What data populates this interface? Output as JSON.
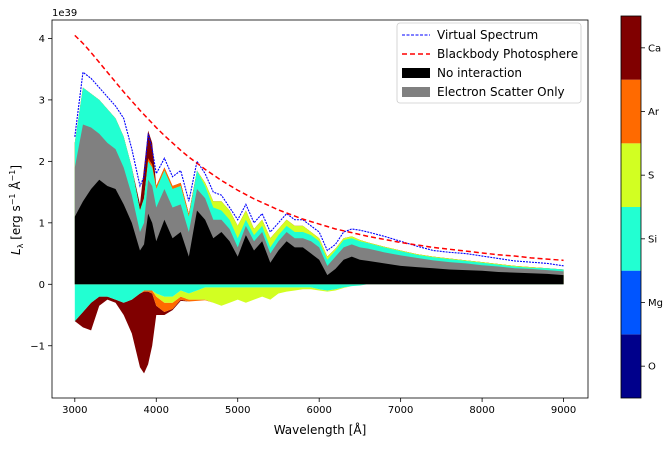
{
  "chart_data": {
    "type": "area",
    "xlabel": "Wavelength [Å]",
    "ylabel": "L_λ [erg s⁻¹ Å⁻¹]",
    "ylabel_main": "L",
    "ylabel_sub": "λ",
    "ylabel_rest1": " [erg s",
    "ylabel_sup1": "−1",
    "ylabel_rest2": " Å",
    "ylabel_sup2": "−1",
    "ylabel_rest3": "]",
    "offset_text": "1e39",
    "xlim": [
      2720,
      9300
    ],
    "ylim": [
      -1.85,
      4.3
    ],
    "xticks": [
      3000,
      4000,
      5000,
      6000,
      7000,
      8000,
      9000
    ],
    "yticks": [
      -1,
      0,
      1,
      2,
      3,
      4
    ],
    "ytick_labels": [
      "−1",
      "0",
      "1",
      "2",
      "3",
      "4"
    ],
    "x": [
      3000,
      3100,
      3200,
      3300,
      3400,
      3500,
      3600,
      3700,
      3800,
      3850,
      3900,
      3950,
      4000,
      4100,
      4200,
      4300,
      4400,
      4500,
      4600,
      4700,
      4800,
      4900,
      5000,
      5100,
      5200,
      5300,
      5400,
      5500,
      5600,
      5700,
      5800,
      5900,
      6000,
      6100,
      6200,
      6300,
      6400,
      6500,
      6600,
      6800,
      7000,
      7200,
      7400,
      7600,
      7800,
      8000,
      8200,
      8400,
      8600,
      8800,
      9000
    ],
    "series": [
      {
        "name": "Virtual Spectrum",
        "style": "dashed",
        "color": "#0000ff",
        "values": [
          2.4,
          3.45,
          3.35,
          3.2,
          3.05,
          2.9,
          2.7,
          2.2,
          1.6,
          1.75,
          2.45,
          2.2,
          1.8,
          2.05,
          1.75,
          1.85,
          1.35,
          2.0,
          1.8,
          1.5,
          1.45,
          1.25,
          1.05,
          1.3,
          1.0,
          1.15,
          0.85,
          1.0,
          1.15,
          1.05,
          1.05,
          0.95,
          0.85,
          0.55,
          0.65,
          0.85,
          0.9,
          0.88,
          0.85,
          0.78,
          0.7,
          0.62,
          0.55,
          0.52,
          0.5,
          0.46,
          0.42,
          0.38,
          0.36,
          0.34,
          0.3
        ]
      },
      {
        "name": "Blackbody Photosphere",
        "style": "dashed",
        "color": "#ff0000",
        "values": [
          4.05,
          3.92,
          3.77,
          3.61,
          3.45,
          3.29,
          3.13,
          2.98,
          2.83,
          2.76,
          2.69,
          2.62,
          2.55,
          2.42,
          2.3,
          2.18,
          2.07,
          1.97,
          1.87,
          1.78,
          1.69,
          1.61,
          1.53,
          1.46,
          1.39,
          1.33,
          1.27,
          1.21,
          1.16,
          1.11,
          1.06,
          1.02,
          0.98,
          0.94,
          0.9,
          0.87,
          0.84,
          0.81,
          0.78,
          0.73,
          0.68,
          0.64,
          0.6,
          0.57,
          0.54,
          0.51,
          0.48,
          0.46,
          0.43,
          0.41,
          0.39
        ]
      },
      {
        "name": "No interaction",
        "color": "#000000",
        "values": [
          1.1,
          1.35,
          1.55,
          1.7,
          1.6,
          1.55,
          1.3,
          1.0,
          0.55,
          0.65,
          1.15,
          1.0,
          0.7,
          1.05,
          0.75,
          0.85,
          0.45,
          1.2,
          1.05,
          0.75,
          0.85,
          0.7,
          0.45,
          0.8,
          0.55,
          0.7,
          0.35,
          0.55,
          0.7,
          0.6,
          0.6,
          0.5,
          0.4,
          0.15,
          0.25,
          0.4,
          0.45,
          0.4,
          0.38,
          0.34,
          0.3,
          0.28,
          0.26,
          0.24,
          0.23,
          0.22,
          0.2,
          0.19,
          0.18,
          0.17,
          0.15
        ]
      },
      {
        "name": "Electron Scatter Only",
        "color": "#808080",
        "values": [
          1.9,
          2.6,
          2.55,
          2.45,
          2.3,
          2.2,
          1.9,
          1.45,
          0.85,
          1.0,
          1.7,
          1.6,
          1.25,
          1.55,
          1.25,
          1.3,
          0.85,
          1.55,
          1.4,
          1.05,
          1.05,
          0.9,
          0.6,
          0.95,
          0.7,
          0.85,
          0.5,
          0.7,
          0.85,
          0.75,
          0.75,
          0.7,
          0.6,
          0.3,
          0.45,
          0.6,
          0.65,
          0.6,
          0.58,
          0.52,
          0.47,
          0.43,
          0.39,
          0.36,
          0.34,
          0.31,
          0.29,
          0.26,
          0.25,
          0.23,
          0.21
        ]
      },
      {
        "name": "Si",
        "color": "#22ffd2",
        "values": [
          2.3,
          3.2,
          3.1,
          3.0,
          2.85,
          2.7,
          2.4,
          1.9,
          1.2,
          1.4,
          2.0,
          1.9,
          1.55,
          1.85,
          1.55,
          1.6,
          1.1,
          1.85,
          1.6,
          1.25,
          1.2,
          1.05,
          0.75,
          1.05,
          0.8,
          0.95,
          0.6,
          0.8,
          0.95,
          0.85,
          0.85,
          0.8,
          0.7,
          0.4,
          0.55,
          0.72,
          0.75,
          0.7,
          0.67,
          0.6,
          0.54,
          0.48,
          0.44,
          0.41,
          0.38,
          0.35,
          0.32,
          0.29,
          0.27,
          0.26,
          0.24
        ]
      },
      {
        "name": "S",
        "color": "#d2ff22",
        "values": [
          2.3,
          3.2,
          3.1,
          3.0,
          2.85,
          2.7,
          2.4,
          1.9,
          1.2,
          1.4,
          2.0,
          1.9,
          1.55,
          1.85,
          1.55,
          1.6,
          1.1,
          1.85,
          1.65,
          1.35,
          1.35,
          1.2,
          0.95,
          1.2,
          0.9,
          1.05,
          0.75,
          0.9,
          1.05,
          0.95,
          0.95,
          0.85,
          0.75,
          0.45,
          0.58,
          0.75,
          0.78,
          0.72,
          0.68,
          0.61,
          0.55,
          0.49,
          0.45,
          0.42,
          0.39,
          0.36,
          0.33,
          0.3,
          0.28,
          0.26,
          0.24
        ]
      },
      {
        "name": "Ar",
        "color": "#ff6a00",
        "values": [
          2.3,
          3.2,
          3.1,
          3.0,
          2.85,
          2.7,
          2.4,
          1.9,
          1.2,
          1.4,
          2.05,
          1.95,
          1.6,
          1.9,
          1.6,
          1.65,
          1.15,
          1.85,
          1.65,
          1.35,
          1.35,
          1.2,
          0.95,
          1.2,
          0.9,
          1.05,
          0.75,
          0.9,
          1.05,
          0.95,
          0.95,
          0.85,
          0.75,
          0.45,
          0.58,
          0.75,
          0.78,
          0.72,
          0.68,
          0.61,
          0.55,
          0.49,
          0.45,
          0.42,
          0.39,
          0.36,
          0.33,
          0.3,
          0.28,
          0.26,
          0.24
        ]
      },
      {
        "name": "Ca",
        "color": "#800000",
        "values": [
          2.3,
          3.2,
          3.1,
          3.0,
          2.85,
          2.7,
          2.4,
          1.9,
          1.3,
          1.9,
          2.5,
          2.3,
          1.6,
          1.9,
          1.6,
          1.65,
          1.15,
          1.85,
          1.65,
          1.35,
          1.35,
          1.2,
          0.95,
          1.2,
          0.9,
          1.05,
          0.75,
          0.9,
          1.05,
          0.95,
          0.95,
          0.85,
          0.75,
          0.45,
          0.58,
          0.75,
          0.78,
          0.72,
          0.68,
          0.61,
          0.55,
          0.49,
          0.45,
          0.42,
          0.39,
          0.36,
          0.33,
          0.3,
          0.28,
          0.26,
          0.24
        ]
      }
    ],
    "absorption": {
      "x": [
        3000,
        3100,
        3200,
        3300,
        3400,
        3500,
        3600,
        3700,
        3800,
        3850,
        3900,
        3950,
        4000,
        4100,
        4200,
        4300,
        4400,
        4500,
        4600,
        4700,
        4800,
        4900,
        5000,
        5100,
        5200,
        5300,
        5400,
        5500,
        5600,
        5700,
        5800,
        5900,
        6000,
        6100,
        6200,
        6300,
        6400,
        6500,
        6600
      ],
      "layers": [
        {
          "name": "Si",
          "color": "#22ffd2",
          "values": [
            -0.6,
            -0.45,
            -0.3,
            -0.2,
            -0.2,
            -0.25,
            -0.3,
            -0.25,
            -0.15,
            -0.1,
            -0.1,
            -0.1,
            -0.15,
            -0.2,
            -0.2,
            -0.1,
            -0.15,
            -0.1,
            -0.05,
            -0.05,
            -0.05,
            -0.05,
            -0.05,
            -0.05,
            -0.05,
            -0.05,
            -0.05,
            -0.05,
            -0.05,
            -0.05,
            -0.05,
            -0.05,
            -0.08,
            -0.1,
            -0.08,
            -0.05,
            -0.03,
            -0.02,
            0
          ]
        },
        {
          "name": "S",
          "color": "#d2ff22",
          "values": [
            -0.6,
            -0.45,
            -0.3,
            -0.2,
            -0.2,
            -0.25,
            -0.3,
            -0.25,
            -0.15,
            -0.1,
            -0.1,
            -0.1,
            -0.2,
            -0.3,
            -0.3,
            -0.2,
            -0.25,
            -0.25,
            -0.25,
            -0.3,
            -0.35,
            -0.3,
            -0.25,
            -0.3,
            -0.25,
            -0.2,
            -0.25,
            -0.15,
            -0.12,
            -0.1,
            -0.08,
            -0.08,
            -0.1,
            -0.12,
            -0.1,
            -0.06,
            -0.03,
            -0.02,
            0
          ]
        },
        {
          "name": "Ar",
          "color": "#ff6a00",
          "values": [
            -0.6,
            -0.45,
            -0.3,
            -0.2,
            -0.2,
            -0.25,
            -0.3,
            -0.25,
            -0.15,
            -0.12,
            -0.12,
            -0.15,
            -0.35,
            -0.45,
            -0.4,
            -0.25,
            -0.28,
            -0.27,
            -0.26,
            -0.3,
            -0.35,
            -0.3,
            -0.25,
            -0.3,
            -0.25,
            -0.2,
            -0.25,
            -0.15,
            -0.12,
            -0.1,
            -0.08,
            -0.08,
            -0.1,
            -0.12,
            -0.1,
            -0.06,
            -0.03,
            -0.02,
            0
          ]
        },
        {
          "name": "Ca",
          "color": "#800000",
          "values": [
            -0.6,
            -0.7,
            -0.75,
            -0.35,
            -0.25,
            -0.3,
            -0.5,
            -0.8,
            -1.35,
            -1.45,
            -1.3,
            -1.0,
            -0.5,
            -0.5,
            -0.42,
            -0.27,
            -0.28,
            -0.27,
            -0.26,
            -0.3,
            -0.35,
            -0.3,
            -0.25,
            -0.3,
            -0.25,
            -0.2,
            -0.25,
            -0.15,
            -0.12,
            -0.1,
            -0.08,
            -0.08,
            -0.1,
            -0.12,
            -0.1,
            -0.06,
            -0.03,
            -0.02,
            0
          ]
        }
      ]
    },
    "legend": {
      "placement": "top-right",
      "entries": [
        {
          "label": "Virtual Spectrum",
          "kind": "line",
          "color": "#0000ff",
          "dash": "fine"
        },
        {
          "label": "Blackbody Photosphere",
          "kind": "line",
          "color": "#ff0000",
          "dash": "wide"
        },
        {
          "label": "No interaction",
          "kind": "patch",
          "color": "#000000"
        },
        {
          "label": "Electron Scatter Only",
          "kind": "patch",
          "color": "#808080"
        }
      ]
    },
    "colorbar": {
      "labels": [
        "O",
        "Mg",
        "Si",
        "S",
        "Ar",
        "Ca"
      ],
      "colors": [
        "#00008b",
        "#0055ff",
        "#22ffd2",
        "#d2ff22",
        "#ff6a00",
        "#800000"
      ]
    }
  }
}
